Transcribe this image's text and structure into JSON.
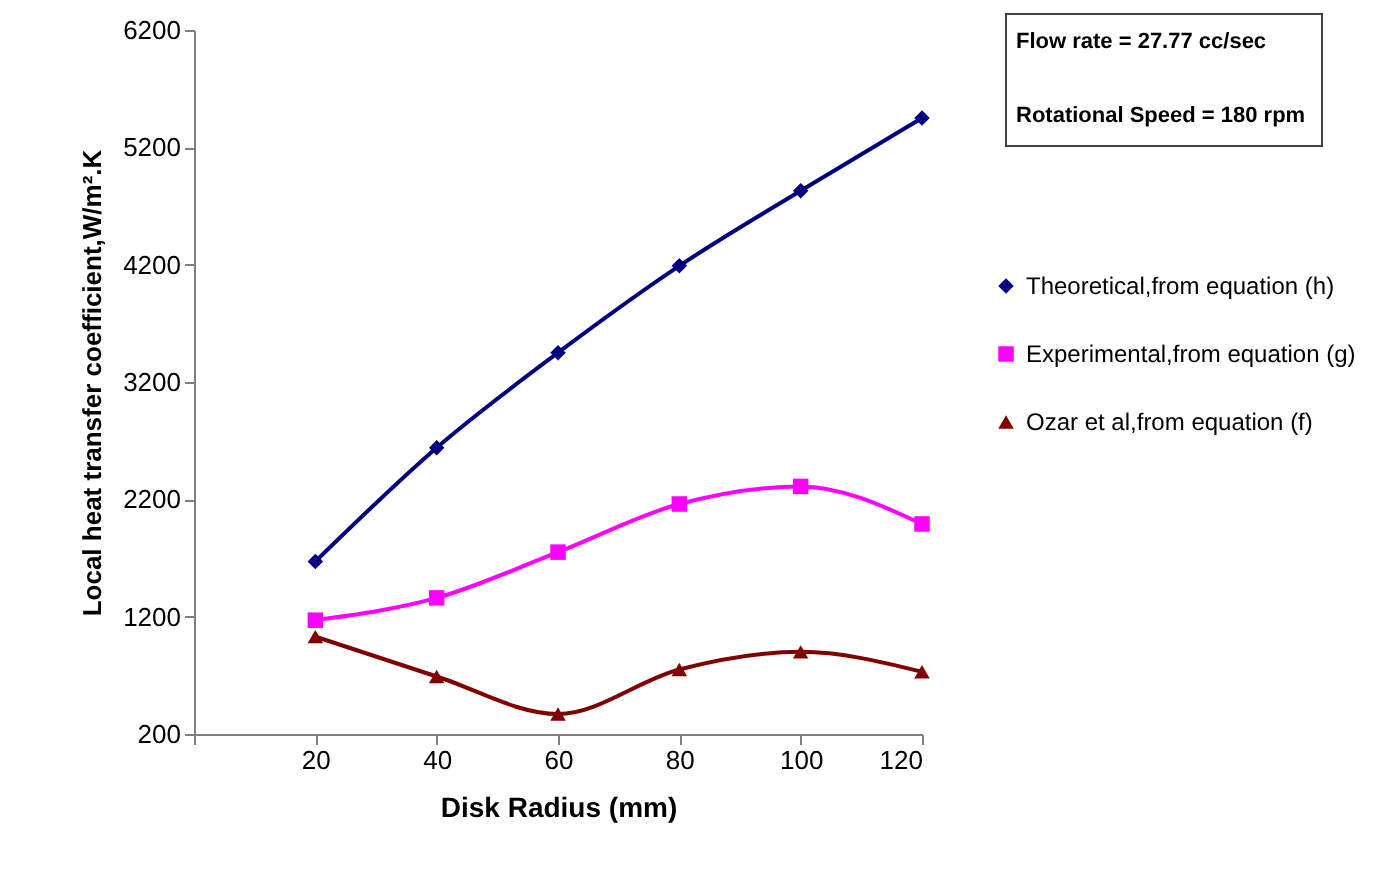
{
  "chart_data": {
    "type": "line",
    "xlabel": "Disk Radius (mm)",
    "ylabel": "Local heat transfer coefficient,W/m².K",
    "x": [
      20,
      40,
      60,
      80,
      100,
      120
    ],
    "series": [
      {
        "name": "Theoretical,from equation (h)",
        "color": "#000080",
        "marker": "diamond",
        "values": [
          1670,
          2640,
          3450,
          4190,
          4830,
          5450
        ]
      },
      {
        "name": "Experimental,from equation (g)",
        "color": "#ff00ff",
        "marker": "square",
        "values": [
          1170,
          1360,
          1750,
          2160,
          2310,
          1990
        ]
      },
      {
        "name": "Ozar et al,from equation (f)",
        "color": "#800000",
        "marker": "triangle",
        "values": [
          1030,
          690,
          370,
          750,
          900,
          730
        ]
      }
    ],
    "xlim": [
      0,
      120
    ],
    "xticks": [
      {
        "value": 0,
        "label": null
      },
      20,
      40,
      60,
      80,
      100,
      120
    ],
    "ylim": [
      200,
      6200
    ],
    "yticks": [
      200,
      1200,
      2200,
      3200,
      4200,
      5200,
      6200
    ],
    "grid": false,
    "legend": "right",
    "annotations": [
      "Flow rate = 27.77 cc/sec",
      "Rotational Speed = 180 rpm"
    ]
  }
}
